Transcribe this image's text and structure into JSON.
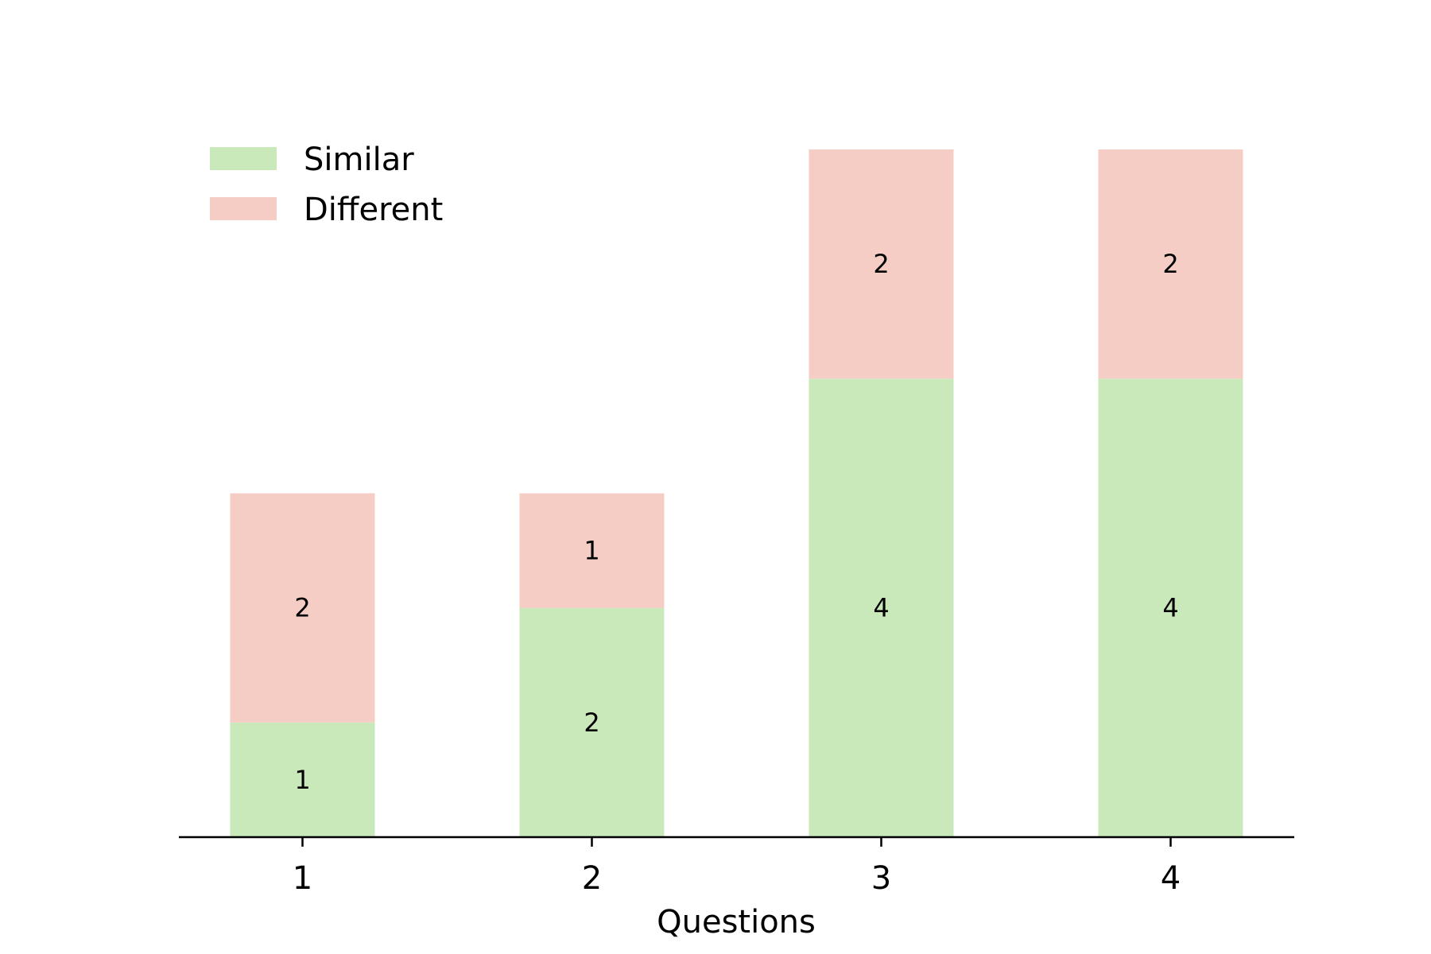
{
  "chart_data": {
    "type": "bar",
    "stacked": true,
    "categories": [
      "1",
      "2",
      "3",
      "4"
    ],
    "series": [
      {
        "name": "Similar",
        "values": [
          1,
          2,
          4,
          4
        ],
        "color": "#c9e9bb"
      },
      {
        "name": "Different",
        "values": [
          2,
          1,
          2,
          2
        ],
        "color": "#f5cdc5"
      }
    ],
    "xlabel": "Questions",
    "ylabel": "",
    "ylim": [
      0,
      6
    ],
    "legend": {
      "position": "top-left",
      "entries": [
        "Similar",
        "Different"
      ]
    },
    "grid": false,
    "data_labels": true
  }
}
